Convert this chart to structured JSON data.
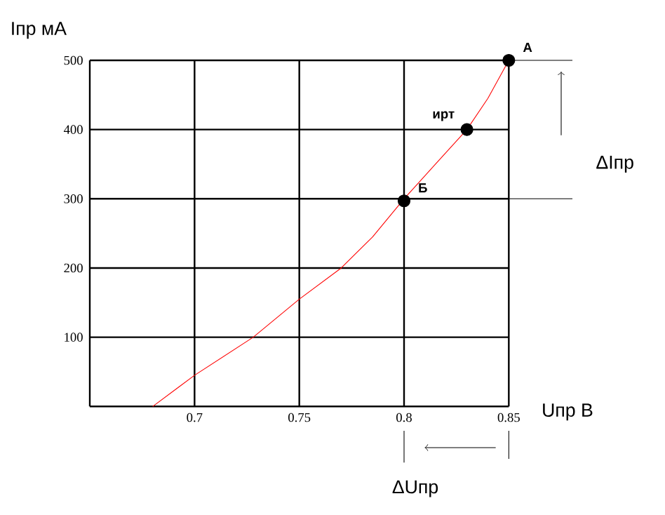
{
  "chart_data": {
    "type": "line",
    "xlabel": "Uпр В",
    "ylabel": "Iпр мА",
    "xlim": [
      0.65,
      0.85
    ],
    "ylim": [
      0,
      500
    ],
    "xticks": [
      0.7,
      0.75,
      0.8,
      0.85
    ],
    "yticks": [
      100,
      200,
      300,
      400,
      500
    ],
    "grid": true,
    "series": [
      {
        "color": "#ff0000",
        "marker": "none",
        "x": [
          0.68,
          0.7,
          0.728,
          0.75,
          0.77,
          0.785,
          0.8,
          0.815,
          0.83,
          0.84,
          0.85
        ],
        "values": [
          0,
          45,
          100,
          155,
          200,
          245,
          300,
          350,
          400,
          445,
          500
        ]
      },
      {
        "type": "scatter",
        "color": "#000000",
        "marker": "circle",
        "x": [
          0.8,
          0.83,
          0.85
        ],
        "values": [
          297,
          400,
          500
        ]
      }
    ],
    "annotations": [
      {
        "text": "А",
        "x": 0.85,
        "y": 500
      },
      {
        "text": "ирт",
        "x": 0.83,
        "y": 400
      },
      {
        "text": "Б",
        "x": 0.8,
        "y": 297
      },
      "ΔIпр",
      "ΔUпр"
    ]
  }
}
